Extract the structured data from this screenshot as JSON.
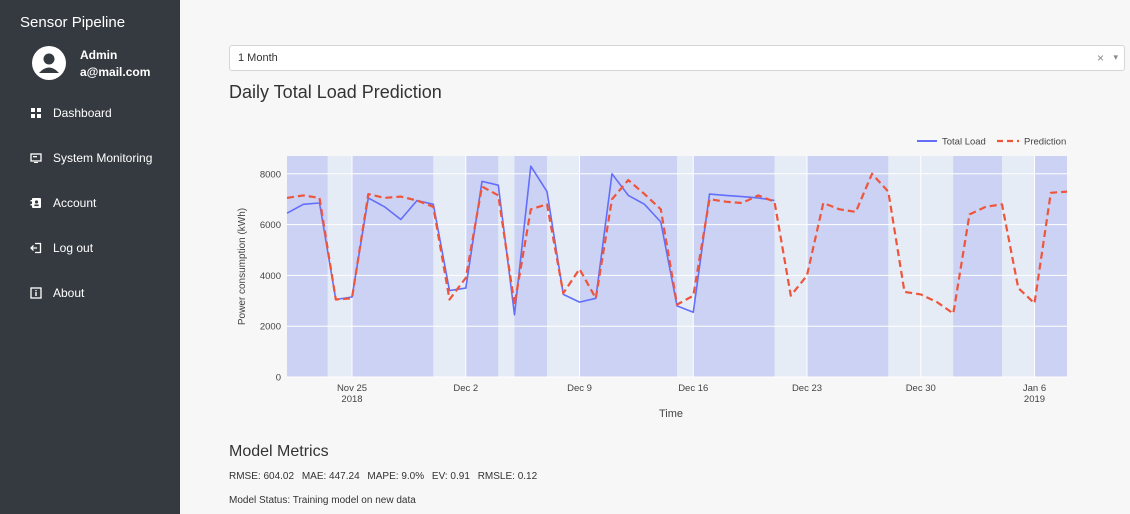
{
  "sidebar": {
    "brand": "Sensor Pipeline",
    "user": {
      "name": "Admin",
      "email": "a@mail.com"
    },
    "items": [
      {
        "label": "Dashboard",
        "icon": "dashboard-grid-icon"
      },
      {
        "label": "System Monitoring",
        "icon": "monitor-icon"
      },
      {
        "label": "Account",
        "icon": "account-card-icon"
      },
      {
        "label": "Log out",
        "icon": "logout-icon"
      },
      {
        "label": "About",
        "icon": "info-square-icon"
      }
    ]
  },
  "range_select": {
    "value": "1 Month",
    "clear": "×",
    "arrow": "▾"
  },
  "page_title": "Daily Total Load Prediction",
  "chart_data": {
    "type": "line",
    "xlabel": "Time",
    "ylabel": "Power consumption (kWh)",
    "ylim": [
      0,
      8700
    ],
    "yticks": [
      0,
      2000,
      4000,
      6000,
      8000
    ],
    "xlim": [
      "2018-11-21",
      "2019-01-08"
    ],
    "xticks": [
      {
        "date": "2018-11-25",
        "label": "Nov 25",
        "sub": "2018"
      },
      {
        "date": "2018-12-02",
        "label": "Dec 2",
        "sub": ""
      },
      {
        "date": "2018-12-09",
        "label": "Dec 9",
        "sub": ""
      },
      {
        "date": "2018-12-16",
        "label": "Dec 16",
        "sub": ""
      },
      {
        "date": "2018-12-23",
        "label": "Dec 23",
        "sub": ""
      },
      {
        "date": "2018-12-30",
        "label": "Dec 30",
        "sub": ""
      },
      {
        "date": "2019-01-06",
        "label": "Jan 6",
        "sub": "2019"
      }
    ],
    "legend_position": "top-right",
    "colors": {
      "actual": "#636efa",
      "prediction": "#ef553b",
      "band": "#ccd2f3",
      "plot_bg": "#e5ecf6"
    },
    "bands": [
      [
        "2018-11-21",
        "2018-11-23.5"
      ],
      [
        "2018-11-25",
        "2018-11-30"
      ],
      [
        "2018-12-02",
        "2018-12-04"
      ],
      [
        "2018-12-05",
        "2018-12-07"
      ],
      [
        "2018-12-09",
        "2018-12-15"
      ],
      [
        "2018-12-16",
        "2018-12-21"
      ],
      [
        "2018-12-23",
        "2018-12-28"
      ],
      [
        "2019-01-01",
        "2019-01-04"
      ],
      [
        "2019-01-06",
        "2019-01-08"
      ]
    ],
    "series": [
      {
        "name": "Total Load",
        "x": [
          "2018-11-21",
          "2018-11-22",
          "2018-11-23",
          "2018-11-24",
          "2018-11-25",
          "2018-11-26",
          "2018-11-27",
          "2018-11-28",
          "2018-11-29",
          "2018-11-30",
          "2018-12-01",
          "2018-12-02",
          "2018-12-03",
          "2018-12-04",
          "2018-12-05",
          "2018-12-06",
          "2018-12-07",
          "2018-12-08",
          "2018-12-09",
          "2018-12-10",
          "2018-12-11",
          "2018-12-12",
          "2018-12-13",
          "2018-12-14",
          "2018-12-15",
          "2018-12-16",
          "2018-12-17",
          "2018-12-18",
          "2018-12-19",
          "2018-12-20",
          "2018-12-21"
        ],
        "y": [
          6450,
          6800,
          6850,
          3050,
          3150,
          7050,
          6700,
          6200,
          6950,
          6800,
          3400,
          3500,
          7700,
          7550,
          2450,
          8300,
          7300,
          3250,
          2950,
          3100,
          8000,
          7150,
          6800,
          6100,
          2800,
          2550,
          7200,
          7150,
          7100,
          7050,
          6950
        ]
      },
      {
        "name": "Prediction",
        "x": [
          "2018-11-21",
          "2018-11-22",
          "2018-11-23",
          "2018-11-24",
          "2018-11-25",
          "2018-11-26",
          "2018-11-27",
          "2018-11-28",
          "2018-11-29",
          "2018-11-30",
          "2018-12-01",
          "2018-12-02",
          "2018-12-03",
          "2018-12-04",
          "2018-12-05",
          "2018-12-06",
          "2018-12-07",
          "2018-12-08",
          "2018-12-09",
          "2018-12-10",
          "2018-12-11",
          "2018-12-12",
          "2018-12-13",
          "2018-12-14",
          "2018-12-15",
          "2018-12-16",
          "2018-12-17",
          "2018-12-18",
          "2018-12-19",
          "2018-12-20",
          "2018-12-21",
          "2018-12-22",
          "2018-12-23",
          "2018-12-24",
          "2018-12-25",
          "2018-12-26",
          "2018-12-27",
          "2018-12-28",
          "2018-12-29",
          "2018-12-30",
          "2018-12-31",
          "2019-01-01",
          "2019-01-02",
          "2019-01-03",
          "2019-01-04",
          "2019-01-05",
          "2019-01-06",
          "2019-01-07",
          "2019-01-08"
        ],
        "y": [
          7050,
          7150,
          7050,
          3050,
          3100,
          7200,
          7050,
          7100,
          6950,
          6700,
          3050,
          3900,
          7500,
          7150,
          2850,
          6600,
          6800,
          3300,
          4250,
          3100,
          7000,
          7750,
          7200,
          6600,
          2850,
          3200,
          7000,
          6900,
          6850,
          7150,
          6900,
          3200,
          4000,
          6850,
          6600,
          6500,
          8000,
          7300,
          3350,
          3250,
          2950,
          2500,
          6400,
          6700,
          6800,
          3500,
          2900,
          7250,
          7300
        ]
      }
    ]
  },
  "metrics": {
    "title": "Model Metrics",
    "items": [
      "RMSE: 604.02",
      "MAE: 447.24",
      "MAPE: 9.0%",
      "EV: 0.91",
      "RMSLE: 0.12"
    ],
    "status": "Model Status: Training model on new data"
  }
}
